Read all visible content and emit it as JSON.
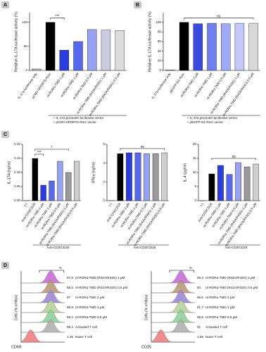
{
  "chart_data": [
    {
      "type": "bar",
      "panel": "A",
      "ylabel": "Relative IL-17A luciferase activity (%)",
      "categories": [
        "IL-17a-luciferase only",
        "pCMV-SPORT6-Rorc",
        "nt-RORα-TMD 2 μM",
        "nt-RORα-TMD 1 μM",
        "nt-RORα-TMD 0.5 μM",
        "nt-RORα-TMD (R42A/R43G) 1 μM",
        "nt-RORα-TMD (R42A/R43G) 0.5 μM"
      ],
      "values": [
        3,
        100,
        42,
        60,
        85,
        84,
        83
      ],
      "colors": [
        "#bdbdbd",
        "#000000",
        "#2b3de0",
        "#5668ee",
        "#98a2f4",
        "#c9cbe0",
        "#dcdcdc"
      ],
      "ylim": [
        0,
        120
      ],
      "yticks": [
        0,
        50,
        100
      ],
      "annotations": [
        "***"
      ],
      "notes": [
        "+ IL-17a promoter-luciferase vector",
        "+ pCMV-SPORT6-Rorc vector"
      ]
    },
    {
      "type": "bar",
      "panel": "B",
      "ylabel": "Relative IL-17A luciferase activity (%)",
      "categories": [
        "IL-17a-luciferase only",
        "pEGFP-N1-Rorc",
        "nt-RORα-TMD 2 μM",
        "nt-RORα-TMD 1 μM",
        "nt-RORα-TMD 0.5 μM",
        "nt-RORα-TMD (R42A/R43G) 1 μM",
        "nt-RORα-TMD (R42A/R43G) 0.5 μM"
      ],
      "values": [
        1,
        100,
        97,
        98,
        97,
        98,
        98
      ],
      "colors": [
        "#bdbdbd",
        "#000000",
        "#3a4be0",
        "#6f7ef0",
        "#9fa9f5",
        "#c2c8f7",
        "#d9d9d9"
      ],
      "ylim": [
        0,
        120
      ],
      "yticks": [
        0,
        20,
        40,
        60,
        80,
        100
      ],
      "annotations": [
        "ns"
      ],
      "notes": [
        "+ IL-17a promoter-luciferase vector",
        "+ pEGFP-N1-Rorc vector"
      ]
    },
    {
      "type": "bar",
      "panel": "C",
      "ylabel": "IL-17A (ng/ml)",
      "categories": [
        "(-)",
        "Anti-CD3/CD28",
        "nt-RORα-TMD 2 μM",
        "nt-RORα-TMD 1 μM",
        "nt-RORα-TMD 0.5 μM",
        "nt-RORα-TMD (R42A/R43G) 1 μM",
        "nt-RORα-TMD (R42A/R43G) 0.5 μM"
      ],
      "values": [
        0,
        0.15,
        0.055,
        0.07,
        0.14,
        0.1,
        0.14
      ],
      "colors": [
        "#ffffff",
        "#000000",
        "#2b3de0",
        "#5668ee",
        "#98a2f4",
        "#9a9a9a",
        "#cfcfcf"
      ],
      "ylim": [
        0,
        0.2
      ],
      "yticks": [
        {
          "value": 0,
          "label": "0.00"
        },
        {
          "value": 0.05,
          "label": "0.05"
        },
        {
          "value": 0.1,
          "label": "0.10"
        },
        {
          "value": 0.15,
          "label": "0.15"
        },
        {
          "value": 0.2,
          "label": "0.20"
        }
      ],
      "annotations": [
        "***",
        "*"
      ],
      "group_label": "Anti-CD3/CD28"
    },
    {
      "type": "bar",
      "ylabel": "IFN-γ (ng/ml)",
      "categories": [
        "(-)",
        "Anti-CD3/CD28",
        "nt-RORα-TMD 2 μM",
        "nt-RORα-TMD 1 μM",
        "nt-RORα-TMD 0.5 μM",
        "nt-RORα-TMD (R42A/R43G) 1 μM",
        "nt-RORα-TMD (R42A/R43G) 0.5 μM"
      ],
      "values": [
        0,
        5.0,
        5.1,
        5.1,
        5.0,
        5.0,
        5.1
      ],
      "colors": [
        "#ffffff",
        "#000000",
        "#2b3de0",
        "#5668ee",
        "#98a2f4",
        "#9a9a9a",
        "#cfcfcf"
      ],
      "ylim": [
        0,
        6
      ],
      "yticks": [
        0,
        2,
        4,
        6
      ],
      "annotations": [
        "ns"
      ],
      "group_label": "Anti-CD3/CD28"
    },
    {
      "type": "bar",
      "ylabel": "IL-4 (pg/ml)",
      "categories": [
        "(-)",
        "Anti-CD3/CD28",
        "nt-RORα-TMD 2 μM",
        "nt-RORα-TMD 1 μM",
        "nt-RORα-TMD 0.5 μM",
        "nt-RORα-TMD (R42A/R43G) 1 μM",
        "nt-RORα-TMD (R42A/R43G) 0.5 μM"
      ],
      "values": [
        0,
        9.5,
        12.5,
        9.3,
        13.5,
        12,
        13
      ],
      "colors": [
        "#ffffff",
        "#000000",
        "#2b3de0",
        "#5668ee",
        "#98a2f4",
        "#9a9a9a",
        "#cfcfcf"
      ],
      "ylim": [
        0,
        20
      ],
      "yticks": [
        0,
        5,
        10,
        15,
        20
      ],
      "annotations": [
        "ns"
      ],
      "group_label": "Anti-CD3/CD28"
    },
    {
      "type": "flow",
      "panel": "D",
      "xlabel": "CD69",
      "ylabel": "Cells (% of Max)",
      "gate_label": "%",
      "rows": [
        {
          "label": "nt-RORα-TMD (R42A/R43G) 1 μM",
          "percent": 97.8,
          "color": "#c76fd8"
        },
        {
          "label": "nt-RORα-TMD (R42A/R43G) 0.5 μM",
          "percent": 98.5,
          "color": "#b89a78"
        },
        {
          "label": "nt-RORα-TMD 2 μM",
          "percent": 97.0,
          "color": "#9c87d8"
        },
        {
          "label": "nt-RORα-TMD 1 μM",
          "percent": 98.8,
          "color": "#b6d39a"
        },
        {
          "label": "nt-RORα-TMD 0.5 μM",
          "percent": 99.2,
          "color": "#8fcf9a"
        },
        {
          "label": "Activated T cell",
          "percent": 98.4,
          "color": "#b0b0b0"
        },
        {
          "label": "Naive T cell",
          "percent": 1.45,
          "color": "#f08080"
        }
      ]
    },
    {
      "type": "flow",
      "xlabel": "CD25",
      "ylabel": "Cells (% of Max)",
      "gate_label": "%",
      "rows": [
        {
          "label": "nt-RORα-TMD (R42A/R43G) 1 μM",
          "percent": 95.2,
          "color": "#c76fd8"
        },
        {
          "label": "nt-RORα-TMD (R42A/R43G) 0.5 μM",
          "percent": 93.0,
          "color": "#b89a78"
        },
        {
          "label": "nt-RORα-TMD 2 μM",
          "percent": 95.6,
          "color": "#9c87d8"
        },
        {
          "label": "nt-RORα-TMD 1 μM",
          "percent": 91.7,
          "color": "#b6d39a"
        },
        {
          "label": "nt-RORα-TMD 0.5 μM",
          "percent": 95.8,
          "color": "#8fcf9a"
        },
        {
          "label": "Activated T cell",
          "percent": 91.0,
          "color": "#b0b0b0"
        },
        {
          "label": "Naive T cell",
          "percent": 1.55,
          "color": "#f08080"
        }
      ]
    }
  ]
}
